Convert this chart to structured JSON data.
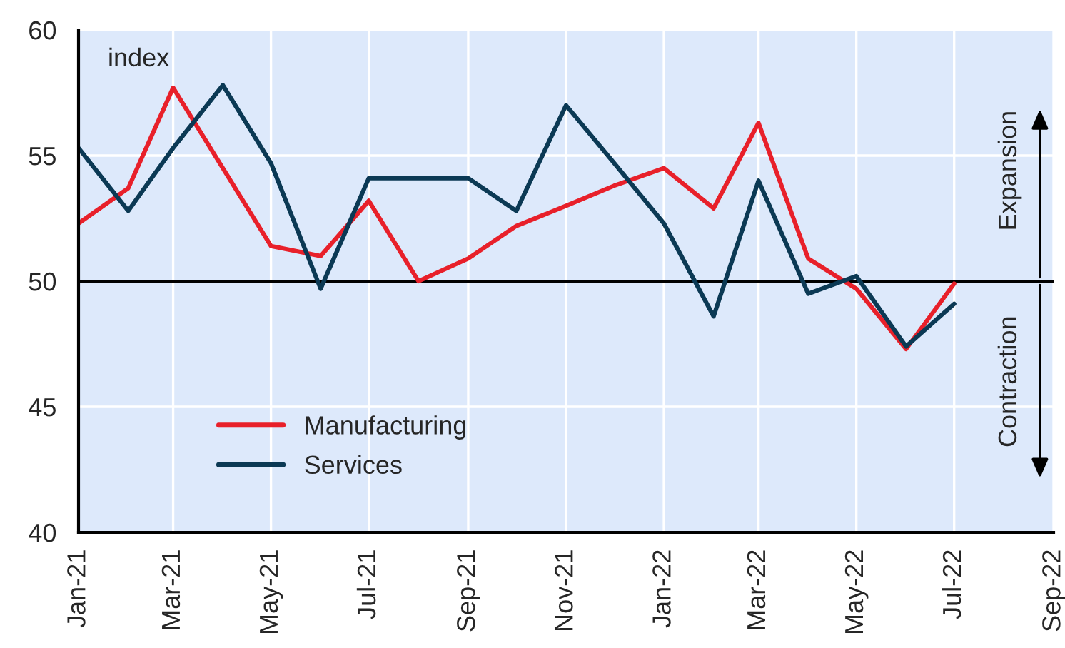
{
  "chart_data": {
    "type": "line",
    "x": [
      "2021-01",
      "2021-02",
      "2021-03",
      "2021-04",
      "2021-05",
      "2021-06",
      "2021-07",
      "2021-08",
      "2021-09",
      "2021-10",
      "2021-11",
      "2021-12",
      "2022-01",
      "2022-02",
      "2022-03",
      "2022-04",
      "2022-05",
      "2022-06",
      "2022-07"
    ],
    "series": [
      {
        "name": "Manufacturing",
        "color": "#e8202a",
        "values": [
          52.3,
          53.7,
          57.7,
          54.5,
          51.4,
          51.0,
          53.2,
          50.0,
          50.9,
          52.2,
          53.0,
          53.8,
          54.5,
          52.9,
          56.3,
          50.9,
          49.7,
          47.3,
          49.9
        ]
      },
      {
        "name": "Services",
        "color": "#0b3954",
        "values": [
          55.3,
          52.8,
          55.3,
          57.8,
          54.7,
          49.7,
          54.1,
          54.1,
          54.1,
          52.8,
          57.0,
          54.7,
          52.3,
          48.6,
          54.0,
          49.5,
          50.2,
          47.4,
          49.1
        ]
      }
    ],
    "ylim": [
      40,
      60
    ],
    "yticks": [
      40,
      45,
      50,
      55,
      60
    ],
    "xlim": [
      "2021-01",
      "2022-09"
    ],
    "xticks": [
      {
        "value": "2021-01",
        "label": "Jan-21"
      },
      {
        "value": "2021-03",
        "label": "Mar-21"
      },
      {
        "value": "2021-05",
        "label": "May-21"
      },
      {
        "value": "2021-07",
        "label": "Jul-21"
      },
      {
        "value": "2021-09",
        "label": "Sep-21"
      },
      {
        "value": "2021-11",
        "label": "Nov-21"
      },
      {
        "value": "2022-01",
        "label": "Jan-22"
      },
      {
        "value": "2022-03",
        "label": "Mar-22"
      },
      {
        "value": "2022-05",
        "label": "May-22"
      },
      {
        "value": "2022-07",
        "label": "Jul-22"
      },
      {
        "value": "2022-09",
        "label": "Sep-22"
      }
    ],
    "ref_lines": [
      {
        "axis": "y",
        "value": 50,
        "color": "#000000"
      }
    ],
    "annotations": [
      "index",
      "Expansion",
      "Contraction"
    ],
    "grid": true,
    "legend": "bottom left",
    "line_style": "solid",
    "marker": "none"
  }
}
